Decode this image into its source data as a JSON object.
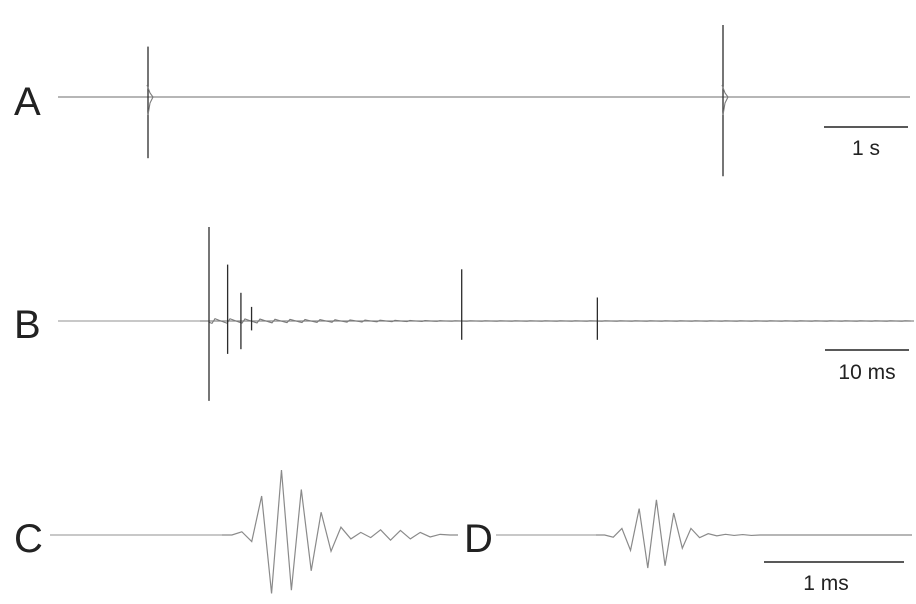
{
  "chart_data": [
    {
      "panel": "A",
      "type": "line",
      "scalebar_label": "1 s",
      "events": [
        {
          "t": 1.0,
          "up": 0.7,
          "down": 0.85
        },
        {
          "t": 11.0,
          "up": 1.0,
          "down": 1.1
        }
      ]
    },
    {
      "panel": "B",
      "type": "line",
      "scalebar_label": "10 ms",
      "events": [
        {
          "t": 0.0,
          "up": 1.0,
          "down": 0.85
        },
        {
          "t": 1.4,
          "up": 0.6,
          "down": 0.35
        },
        {
          "t": 2.4,
          "up": 0.3,
          "down": 0.3
        },
        {
          "t": 3.2,
          "up": 0.15,
          "down": 0.1
        },
        {
          "t": 19.0,
          "up": 0.55,
          "down": 0.2
        },
        {
          "t": 29.2,
          "up": 0.25,
          "down": 0.2
        }
      ]
    },
    {
      "panel": "C",
      "type": "line",
      "waveform": [
        0,
        0,
        0.05,
        -0.1,
        0.6,
        -0.9,
        1.0,
        -0.85,
        0.7,
        -0.55,
        0.35,
        -0.25,
        0.12,
        -0.06,
        0.04,
        -0.04,
        0.08,
        -0.08,
        0.07,
        -0.06,
        0.04,
        -0.03,
        0.01,
        0
      ]
    },
    {
      "panel": "D",
      "type": "line",
      "scalebar_label": "1 ms",
      "waveform": [
        0,
        0,
        -0.05,
        0.15,
        -0.35,
        0.6,
        -0.75,
        0.8,
        -0.7,
        0.5,
        -0.3,
        0.15,
        -0.06,
        0.03,
        -0.02,
        0.015,
        -0.01,
        0.01,
        -0.01,
        0
      ]
    }
  ]
}
